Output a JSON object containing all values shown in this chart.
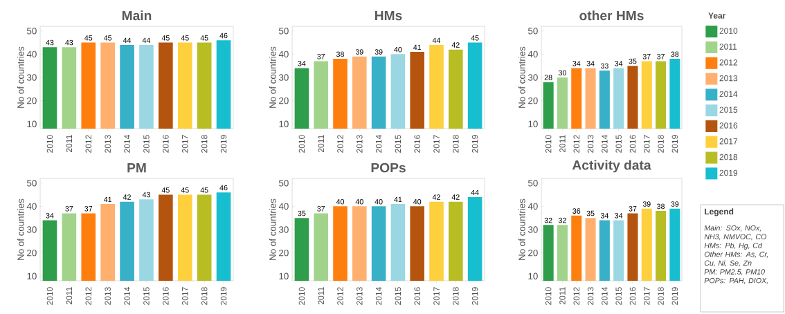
{
  "chart_data": [
    {
      "type": "bar",
      "title": "Main",
      "ylabel": "No of countries",
      "categories": [
        "2010",
        "2011",
        "2012",
        "2013",
        "2014",
        "2015",
        "2016",
        "2017",
        "2018",
        "2019"
      ],
      "ylim": [
        8,
        52
      ],
      "yticks": [
        10,
        20,
        30,
        40,
        50
      ],
      "data_labels": true,
      "series": [
        {
          "color": "#2e9e4a",
          "values": [
            43,
            null,
            null,
            null,
            null,
            null,
            null,
            null,
            null,
            null
          ]
        },
        {
          "color": "#a1d48a",
          "values": [
            null,
            43,
            null,
            null,
            null,
            null,
            null,
            null,
            null,
            null
          ]
        },
        {
          "color": "#ff7f0e",
          "values": [
            null,
            null,
            45,
            null,
            null,
            null,
            null,
            null,
            null,
            null
          ]
        },
        {
          "color": "#ffb06e",
          "values": [
            null,
            null,
            null,
            45,
            null,
            null,
            null,
            null,
            null,
            null
          ]
        },
        {
          "color": "#38b0c8",
          "values": [
            null,
            null,
            null,
            null,
            44,
            null,
            null,
            null,
            null,
            null
          ]
        },
        {
          "color": "#9ad7e3",
          "values": [
            null,
            null,
            null,
            null,
            null,
            44,
            null,
            null,
            null,
            null
          ]
        },
        {
          "color": "#b5540e",
          "values": [
            null,
            null,
            null,
            null,
            null,
            null,
            45,
            null,
            null,
            null
          ]
        },
        {
          "color": "#ffd03d",
          "values": [
            null,
            null,
            null,
            null,
            null,
            null,
            null,
            45,
            null,
            null
          ]
        },
        {
          "color": "#b8bd24",
          "values": [
            null,
            null,
            null,
            null,
            null,
            null,
            null,
            null,
            45,
            null
          ]
        },
        {
          "color": "#17becf",
          "values": [
            null,
            null,
            null,
            null,
            null,
            null,
            null,
            null,
            null,
            46
          ]
        }
      ]
    },
    {
      "type": "bar",
      "title": "HMs",
      "ylabel": "No of countries",
      "categories": [
        "2010",
        "2011",
        "2012",
        "2013",
        "2014",
        "2015",
        "2016",
        "2017",
        "2018",
        "2019"
      ],
      "ylim": [
        8,
        52
      ],
      "yticks": [
        10,
        20,
        30,
        40,
        50
      ],
      "data_labels": true,
      "series": [
        {
          "color": "#2e9e4a",
          "values": [
            34,
            null,
            null,
            null,
            null,
            null,
            null,
            null,
            null,
            null
          ]
        },
        {
          "color": "#a1d48a",
          "values": [
            null,
            37,
            null,
            null,
            null,
            null,
            null,
            null,
            null,
            null
          ]
        },
        {
          "color": "#ff7f0e",
          "values": [
            null,
            null,
            38,
            null,
            null,
            null,
            null,
            null,
            null,
            null
          ]
        },
        {
          "color": "#ffb06e",
          "values": [
            null,
            null,
            null,
            39,
            null,
            null,
            null,
            null,
            null,
            null
          ]
        },
        {
          "color": "#38b0c8",
          "values": [
            null,
            null,
            null,
            null,
            39,
            null,
            null,
            null,
            null,
            null
          ]
        },
        {
          "color": "#9ad7e3",
          "values": [
            null,
            null,
            null,
            null,
            null,
            40,
            null,
            null,
            null,
            null
          ]
        },
        {
          "color": "#b5540e",
          "values": [
            null,
            null,
            null,
            null,
            null,
            null,
            41,
            null,
            null,
            null
          ]
        },
        {
          "color": "#ffd03d",
          "values": [
            null,
            null,
            null,
            null,
            null,
            null,
            null,
            44,
            null,
            null
          ]
        },
        {
          "color": "#b8bd24",
          "values": [
            null,
            null,
            null,
            null,
            null,
            null,
            null,
            null,
            42,
            null
          ]
        },
        {
          "color": "#17becf",
          "values": [
            null,
            null,
            null,
            null,
            null,
            null,
            null,
            null,
            null,
            45
          ]
        }
      ]
    },
    {
      "type": "bar",
      "title": "other HMs",
      "ylabel": "No of countries",
      "categories": [
        "2010",
        "2011",
        "2012",
        "2013",
        "2014",
        "2015",
        "2016",
        "2017",
        "2018",
        "2019"
      ],
      "ylim": [
        8,
        52
      ],
      "yticks": [
        10,
        20,
        30,
        40,
        50
      ],
      "data_labels": true,
      "legend": "right",
      "legend_title": "Year",
      "series": [
        {
          "name": "2010",
          "color": "#2e9e4a",
          "values": [
            28,
            null,
            null,
            null,
            null,
            null,
            null,
            null,
            null,
            null
          ]
        },
        {
          "name": "2011",
          "color": "#a1d48a",
          "values": [
            null,
            30,
            null,
            null,
            null,
            null,
            null,
            null,
            null,
            null
          ]
        },
        {
          "name": "2012",
          "color": "#ff7f0e",
          "values": [
            null,
            null,
            34,
            null,
            null,
            null,
            null,
            null,
            null,
            null
          ]
        },
        {
          "name": "2013",
          "color": "#ffb06e",
          "values": [
            null,
            null,
            null,
            34,
            null,
            null,
            null,
            null,
            null,
            null
          ]
        },
        {
          "name": "2014",
          "color": "#38b0c8",
          "values": [
            null,
            null,
            null,
            null,
            33,
            null,
            null,
            null,
            null,
            null
          ]
        },
        {
          "name": "2015",
          "color": "#9ad7e3",
          "values": [
            null,
            null,
            null,
            null,
            null,
            34,
            null,
            null,
            null,
            null
          ]
        },
        {
          "name": "2016",
          "color": "#b5540e",
          "values": [
            null,
            null,
            null,
            null,
            null,
            null,
            35,
            null,
            null,
            null
          ]
        },
        {
          "name": "2017",
          "color": "#ffd03d",
          "values": [
            null,
            null,
            null,
            null,
            null,
            null,
            null,
            37,
            null,
            null
          ]
        },
        {
          "name": "2018",
          "color": "#b8bd24",
          "values": [
            null,
            null,
            null,
            null,
            null,
            null,
            null,
            null,
            37,
            null
          ]
        },
        {
          "name": "2019",
          "color": "#17becf",
          "values": [
            null,
            null,
            null,
            null,
            null,
            null,
            null,
            null,
            null,
            38
          ]
        }
      ]
    },
    {
      "type": "bar",
      "title": "PM",
      "ylabel": "No of countries",
      "categories": [
        "2010",
        "2011",
        "2012",
        "2013",
        "2014",
        "2015",
        "2016",
        "2017",
        "2018",
        "2019"
      ],
      "ylim": [
        8,
        52
      ],
      "yticks": [
        10,
        20,
        30,
        40,
        50
      ],
      "data_labels": true,
      "series": [
        {
          "color": "#2e9e4a",
          "values": [
            34,
            null,
            null,
            null,
            null,
            null,
            null,
            null,
            null,
            null
          ]
        },
        {
          "color": "#a1d48a",
          "values": [
            null,
            37,
            null,
            null,
            null,
            null,
            null,
            null,
            null,
            null
          ]
        },
        {
          "color": "#ff7f0e",
          "values": [
            null,
            null,
            37,
            null,
            null,
            null,
            null,
            null,
            null,
            null
          ]
        },
        {
          "color": "#ffb06e",
          "values": [
            null,
            null,
            null,
            41,
            null,
            null,
            null,
            null,
            null,
            null
          ]
        },
        {
          "color": "#38b0c8",
          "values": [
            null,
            null,
            null,
            null,
            42,
            null,
            null,
            null,
            null,
            null
          ]
        },
        {
          "color": "#9ad7e3",
          "values": [
            null,
            null,
            null,
            null,
            null,
            43,
            null,
            null,
            null,
            null
          ]
        },
        {
          "color": "#b5540e",
          "values": [
            null,
            null,
            null,
            null,
            null,
            null,
            45,
            null,
            null,
            null
          ]
        },
        {
          "color": "#ffd03d",
          "values": [
            null,
            null,
            null,
            null,
            null,
            null,
            null,
            45,
            null,
            null
          ]
        },
        {
          "color": "#b8bd24",
          "values": [
            null,
            null,
            null,
            null,
            null,
            null,
            null,
            null,
            45,
            null
          ]
        },
        {
          "color": "#17becf",
          "values": [
            null,
            null,
            null,
            null,
            null,
            null,
            null,
            null,
            null,
            46
          ]
        }
      ]
    },
    {
      "type": "bar",
      "title": "POPs",
      "ylabel": "No of countries",
      "categories": [
        "2010",
        "2011",
        "2012",
        "2013",
        "2014",
        "2015",
        "2016",
        "2017",
        "2018",
        "2019"
      ],
      "ylim": [
        8,
        52
      ],
      "yticks": [
        10,
        20,
        30,
        40,
        50
      ],
      "data_labels": true,
      "series": [
        {
          "color": "#2e9e4a",
          "values": [
            35,
            null,
            null,
            null,
            null,
            null,
            null,
            null,
            null,
            null
          ]
        },
        {
          "color": "#a1d48a",
          "values": [
            null,
            37,
            null,
            null,
            null,
            null,
            null,
            null,
            null,
            null
          ]
        },
        {
          "color": "#ff7f0e",
          "values": [
            null,
            null,
            40,
            null,
            null,
            null,
            null,
            null,
            null,
            null
          ]
        },
        {
          "color": "#ffb06e",
          "values": [
            null,
            null,
            null,
            40,
            null,
            null,
            null,
            null,
            null,
            null
          ]
        },
        {
          "color": "#38b0c8",
          "values": [
            null,
            null,
            null,
            null,
            40,
            null,
            null,
            null,
            null,
            null
          ]
        },
        {
          "color": "#9ad7e3",
          "values": [
            null,
            null,
            null,
            null,
            null,
            41,
            null,
            null,
            null,
            null
          ]
        },
        {
          "color": "#b5540e",
          "values": [
            null,
            null,
            null,
            null,
            null,
            null,
            40,
            null,
            null,
            null
          ]
        },
        {
          "color": "#ffd03d",
          "values": [
            null,
            null,
            null,
            null,
            null,
            null,
            null,
            42,
            null,
            null
          ]
        },
        {
          "color": "#b8bd24",
          "values": [
            null,
            null,
            null,
            null,
            null,
            null,
            null,
            null,
            42,
            null
          ]
        },
        {
          "color": "#17becf",
          "values": [
            null,
            null,
            null,
            null,
            null,
            null,
            null,
            null,
            null,
            44
          ]
        }
      ]
    },
    {
      "type": "bar",
      "title": "Activity data",
      "ylabel": "No of countries",
      "categories": [
        "2010",
        "2011",
        "2012",
        "2013",
        "2014",
        "2015",
        "2016",
        "2017",
        "2018",
        "2019"
      ],
      "ylim": [
        8,
        52
      ],
      "yticks": [
        10,
        20,
        30,
        40,
        50
      ],
      "data_labels": true,
      "series": [
        {
          "color": "#2e9e4a",
          "values": [
            32,
            null,
            null,
            null,
            null,
            null,
            null,
            null,
            null,
            null
          ]
        },
        {
          "color": "#a1d48a",
          "values": [
            null,
            32,
            null,
            null,
            null,
            null,
            null,
            null,
            null,
            null
          ]
        },
        {
          "color": "#ff7f0e",
          "values": [
            null,
            null,
            36,
            null,
            null,
            null,
            null,
            null,
            null,
            null
          ]
        },
        {
          "color": "#ffb06e",
          "values": [
            null,
            null,
            null,
            35,
            null,
            null,
            null,
            null,
            null,
            null
          ]
        },
        {
          "color": "#38b0c8",
          "values": [
            null,
            null,
            null,
            null,
            34,
            null,
            null,
            null,
            null,
            null
          ]
        },
        {
          "color": "#9ad7e3",
          "values": [
            null,
            null,
            null,
            null,
            null,
            34,
            null,
            null,
            null,
            null
          ]
        },
        {
          "color": "#b5540e",
          "values": [
            null,
            null,
            null,
            null,
            null,
            null,
            37,
            null,
            null,
            null
          ]
        },
        {
          "color": "#ffd03d",
          "values": [
            null,
            null,
            null,
            null,
            null,
            null,
            null,
            39,
            null,
            null
          ]
        },
        {
          "color": "#b8bd24",
          "values": [
            null,
            null,
            null,
            null,
            null,
            null,
            null,
            null,
            38,
            null
          ]
        },
        {
          "color": "#17becf",
          "values": [
            null,
            null,
            null,
            null,
            null,
            null,
            null,
            null,
            null,
            39
          ]
        }
      ]
    },
    {
      "type": "other",
      "title": "Legend",
      "annotations": [
        "Main: SOx, NOx, NH3, NMVOC, CO",
        "HMs: Pb, Hg, Cd",
        "Other HMs: As, Cr, Cu, Ni, Se, Zn",
        "PM: PM2.5, PM10",
        "POPs: PAH, DIOX,"
      ]
    }
  ]
}
